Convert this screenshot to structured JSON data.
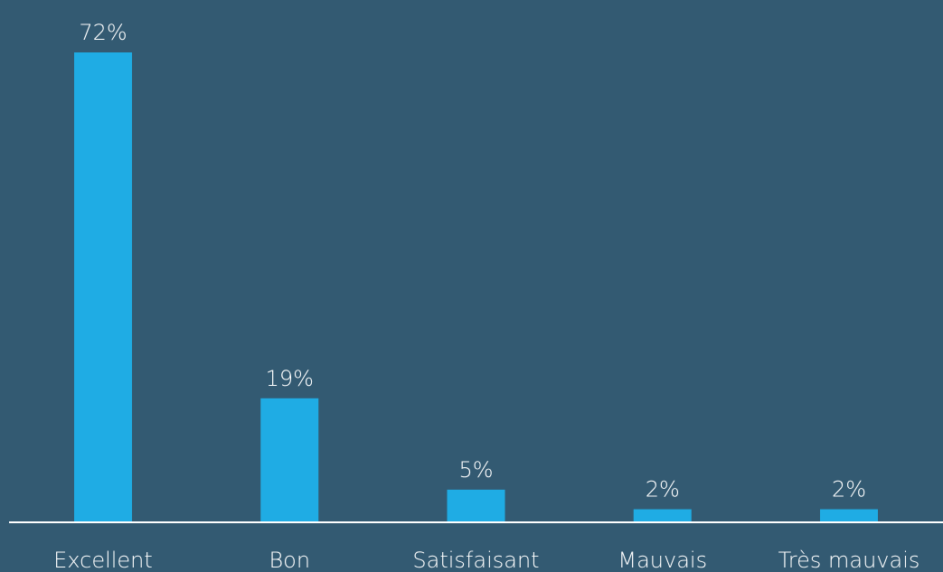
{
  "chart_data": {
    "type": "bar",
    "categories": [
      "Excellent",
      "Bon",
      "Satisfaisant",
      "Mauvais",
      "Très mauvais"
    ],
    "values": [
      72,
      19,
      5,
      2,
      2
    ],
    "value_labels": [
      "72%",
      "19%",
      "5%",
      "2%",
      "2%"
    ],
    "color": "#1facE4"
  }
}
